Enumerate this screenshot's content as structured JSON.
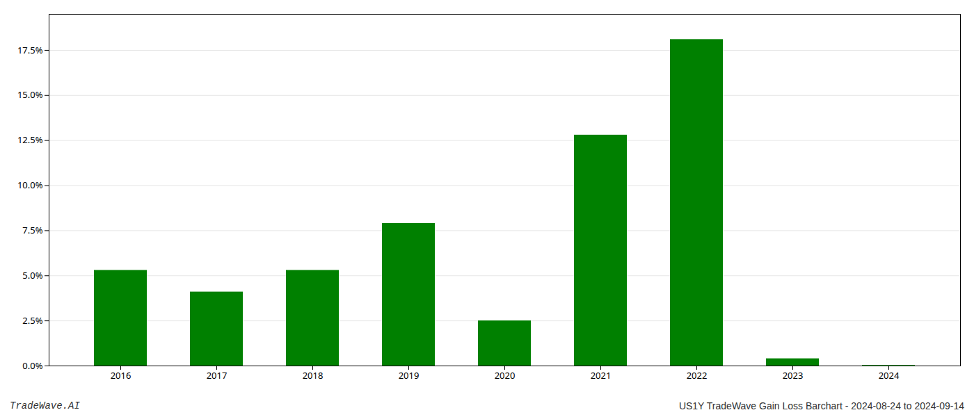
{
  "chart_data": {
    "type": "bar",
    "categories": [
      "2016",
      "2017",
      "2018",
      "2019",
      "2020",
      "2021",
      "2022",
      "2023",
      "2024"
    ],
    "values": [
      0.053,
      0.041,
      0.053,
      0.079,
      0.025,
      0.128,
      0.181,
      0.004,
      0.0003
    ],
    "color": "#008000",
    "ylim": [
      0,
      0.195
    ],
    "yticks": [
      {
        "value": 0.0,
        "label": "0.0%"
      },
      {
        "value": 0.025,
        "label": "2.5%"
      },
      {
        "value": 0.05,
        "label": "5.0%"
      },
      {
        "value": 0.075,
        "label": "7.5%"
      },
      {
        "value": 0.1,
        "label": "10.0%"
      },
      {
        "value": 0.125,
        "label": "12.5%"
      },
      {
        "value": 0.15,
        "label": "15.0%"
      },
      {
        "value": 0.175,
        "label": "17.5%"
      }
    ],
    "grid": true,
    "annotations": [
      "TradeWave.AI",
      "US1Y TradeWave Gain Loss Barchart - 2024-08-24 to 2024-09-14"
    ]
  }
}
